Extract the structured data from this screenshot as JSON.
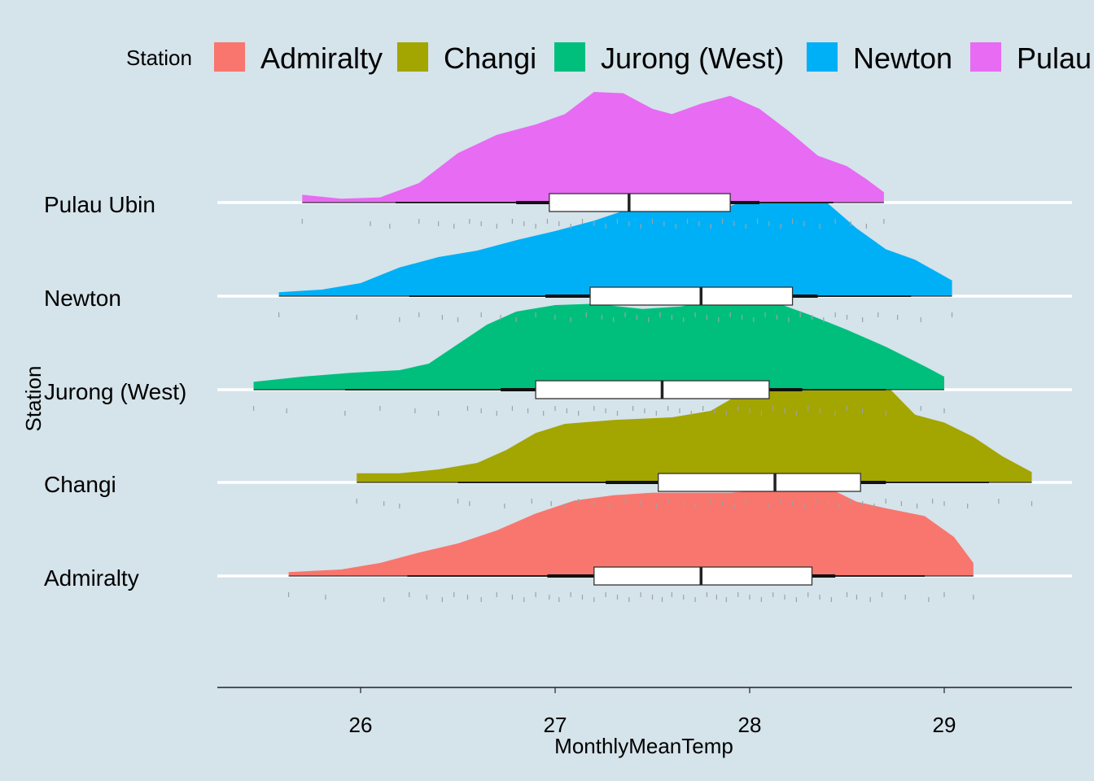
{
  "chart_data": {
    "type": "raincloud",
    "xlabel": "MonthlyMeanTemp",
    "ylabel": "Station",
    "xlim": [
      25.25,
      29.65
    ],
    "xticks": [
      26,
      27,
      28,
      29
    ],
    "legend": {
      "title": "Station",
      "position": "top",
      "entries": [
        "Admiralty",
        "Changi",
        "Jurong (West)",
        "Newton",
        "Pulau"
      ]
    },
    "grid": "horizontal white lines at categories",
    "series": [
      {
        "name": "Admiralty",
        "color": "#F8766D",
        "min": 25.63,
        "q1": 27.2,
        "median": 27.75,
        "q3": 28.32,
        "max": 29.15,
        "whisker_low": 26.24,
        "whisker_high": 28.9,
        "inner_low": 26.96,
        "inner_high": 28.44,
        "density": [
          [
            25.63,
            0.03
          ],
          [
            25.9,
            0.05
          ],
          [
            26.1,
            0.1
          ],
          [
            26.3,
            0.18
          ],
          [
            26.5,
            0.25
          ],
          [
            26.7,
            0.35
          ],
          [
            26.9,
            0.48
          ],
          [
            27.1,
            0.58
          ],
          [
            27.3,
            0.62
          ],
          [
            27.5,
            0.64
          ],
          [
            27.7,
            0.64
          ],
          [
            27.9,
            0.64
          ],
          [
            28.1,
            0.66
          ],
          [
            28.25,
            0.7
          ],
          [
            28.4,
            0.68
          ],
          [
            28.55,
            0.57
          ],
          [
            28.7,
            0.52
          ],
          [
            28.9,
            0.46
          ],
          [
            29.05,
            0.3
          ],
          [
            29.15,
            0.1
          ]
        ],
        "points": [
          25.63,
          25.82,
          26.12,
          26.25,
          26.34,
          26.42,
          26.48,
          26.55,
          26.62,
          26.7,
          26.78,
          26.84,
          26.9,
          26.97,
          27.02,
          27.08,
          27.14,
          27.2,
          27.26,
          27.32,
          27.38,
          27.44,
          27.5,
          27.55,
          27.6,
          27.66,
          27.72,
          27.78,
          27.83,
          27.88,
          27.94,
          28.0,
          28.06,
          28.12,
          28.18,
          28.24,
          28.3,
          28.36,
          28.42,
          28.5,
          28.55,
          28.62,
          28.68,
          28.8,
          28.92,
          29.0,
          29.15
        ]
      },
      {
        "name": "Changi",
        "color": "#A3A500",
        "min": 25.98,
        "q1": 27.53,
        "median": 28.13,
        "q3": 28.57,
        "max": 29.45,
        "whisker_low": 26.5,
        "whisker_high": 29.23,
        "inner_low": 27.26,
        "inner_high": 28.7,
        "density": [
          [
            25.98,
            0.07
          ],
          [
            26.2,
            0.07
          ],
          [
            26.4,
            0.1
          ],
          [
            26.6,
            0.15
          ],
          [
            26.75,
            0.25
          ],
          [
            26.9,
            0.38
          ],
          [
            27.05,
            0.45
          ],
          [
            27.3,
            0.48
          ],
          [
            27.6,
            0.5
          ],
          [
            27.8,
            0.55
          ],
          [
            27.95,
            0.68
          ],
          [
            28.1,
            0.75
          ],
          [
            28.25,
            0.76
          ],
          [
            28.4,
            0.8
          ],
          [
            28.55,
            0.84
          ],
          [
            28.7,
            0.75
          ],
          [
            28.85,
            0.52
          ],
          [
            29.0,
            0.46
          ],
          [
            29.15,
            0.35
          ],
          [
            29.3,
            0.2
          ],
          [
            29.45,
            0.08
          ]
        ],
        "points": [
          25.98,
          26.12,
          26.2,
          26.5,
          26.56,
          26.74,
          26.88,
          26.98,
          27.05,
          27.12,
          27.2,
          27.28,
          27.36,
          27.44,
          27.52,
          27.58,
          27.66,
          27.72,
          27.8,
          27.86,
          27.92,
          27.98,
          28.04,
          28.1,
          28.16,
          28.22,
          28.28,
          28.34,
          28.4,
          28.46,
          28.52,
          28.58,
          28.64,
          28.7,
          28.78,
          28.86,
          28.94,
          29.0,
          29.12,
          29.28,
          29.45
        ]
      },
      {
        "name": "Jurong (West)",
        "color": "#00BF7D",
        "min": 25.45,
        "q1": 26.9,
        "median": 27.55,
        "q3": 28.1,
        "max": 29.0,
        "whisker_low": 25.92,
        "whisker_high": 28.7,
        "inner_low": 26.72,
        "inner_high": 28.27,
        "density": [
          [
            25.45,
            0.06
          ],
          [
            25.7,
            0.1
          ],
          [
            25.95,
            0.13
          ],
          [
            26.2,
            0.15
          ],
          [
            26.35,
            0.2
          ],
          [
            26.5,
            0.35
          ],
          [
            26.65,
            0.5
          ],
          [
            26.8,
            0.6
          ],
          [
            27.0,
            0.65
          ],
          [
            27.2,
            0.66
          ],
          [
            27.45,
            0.62
          ],
          [
            27.65,
            0.64
          ],
          [
            27.85,
            0.7
          ],
          [
            28.0,
            0.7
          ],
          [
            28.15,
            0.66
          ],
          [
            28.3,
            0.58
          ],
          [
            28.5,
            0.46
          ],
          [
            28.7,
            0.33
          ],
          [
            28.9,
            0.18
          ],
          [
            29.0,
            0.1
          ]
        ],
        "points": [
          25.45,
          25.62,
          25.92,
          26.1,
          26.28,
          26.4,
          26.55,
          26.62,
          26.7,
          26.78,
          26.86,
          26.94,
          27.0,
          27.06,
          27.12,
          27.2,
          27.26,
          27.32,
          27.4,
          27.46,
          27.52,
          27.58,
          27.64,
          27.7,
          27.76,
          27.82,
          27.88,
          27.94,
          28.0,
          28.06,
          28.12,
          28.18,
          28.24,
          28.3,
          28.36,
          28.44,
          28.5,
          28.58,
          28.7,
          28.88,
          29.0
        ]
      },
      {
        "name": "Newton",
        "color": "#00B0F6",
        "min": 25.58,
        "q1": 27.18,
        "median": 27.75,
        "q3": 28.22,
        "max": 29.04,
        "whisker_low": 26.25,
        "whisker_high": 28.83,
        "inner_low": 26.95,
        "inner_high": 28.35,
        "density": [
          [
            25.58,
            0.03
          ],
          [
            25.8,
            0.05
          ],
          [
            26.0,
            0.1
          ],
          [
            26.2,
            0.22
          ],
          [
            26.4,
            0.3
          ],
          [
            26.6,
            0.35
          ],
          [
            26.8,
            0.43
          ],
          [
            27.0,
            0.5
          ],
          [
            27.2,
            0.58
          ],
          [
            27.4,
            0.68
          ],
          [
            27.55,
            0.72
          ],
          [
            27.7,
            0.68
          ],
          [
            27.85,
            0.67
          ],
          [
            28.0,
            0.74
          ],
          [
            28.2,
            0.84
          ],
          [
            28.35,
            0.78
          ],
          [
            28.55,
            0.52
          ],
          [
            28.7,
            0.36
          ],
          [
            28.85,
            0.28
          ],
          [
            29.04,
            0.12
          ]
        ],
        "points": [
          25.58,
          25.98,
          26.2,
          26.3,
          26.42,
          26.5,
          26.62,
          26.72,
          26.8,
          26.9,
          27.0,
          27.08,
          27.16,
          27.24,
          27.3,
          27.36,
          27.42,
          27.48,
          27.54,
          27.6,
          27.66,
          27.72,
          27.78,
          27.84,
          27.9,
          27.96,
          28.02,
          28.08,
          28.14,
          28.2,
          28.26,
          28.32,
          28.38,
          28.44,
          28.5,
          28.58,
          28.66,
          28.76,
          28.88,
          29.04
        ]
      },
      {
        "name": "Pulau Ubin",
        "color": "#E76BF3",
        "min": 25.7,
        "q1": 26.97,
        "median": 27.38,
        "q3": 27.9,
        "max": 28.69,
        "whisker_low": 26.18,
        "whisker_high": 28.43,
        "inner_low": 26.8,
        "inner_high": 28.05,
        "density": [
          [
            25.7,
            0.06
          ],
          [
            25.9,
            0.03
          ],
          [
            26.1,
            0.04
          ],
          [
            26.3,
            0.15
          ],
          [
            26.5,
            0.38
          ],
          [
            26.7,
            0.52
          ],
          [
            26.9,
            0.6
          ],
          [
            27.05,
            0.68
          ],
          [
            27.2,
            0.85
          ],
          [
            27.35,
            0.84
          ],
          [
            27.5,
            0.72
          ],
          [
            27.6,
            0.68
          ],
          [
            27.75,
            0.76
          ],
          [
            27.9,
            0.82
          ],
          [
            28.05,
            0.72
          ],
          [
            28.2,
            0.55
          ],
          [
            28.35,
            0.36
          ],
          [
            28.5,
            0.28
          ],
          [
            28.6,
            0.18
          ],
          [
            28.69,
            0.08
          ]
        ],
        "points": [
          25.7,
          26.05,
          26.15,
          26.3,
          26.4,
          26.48,
          26.56,
          26.62,
          26.7,
          26.78,
          26.84,
          26.9,
          26.96,
          27.02,
          27.08,
          27.14,
          27.2,
          27.26,
          27.32,
          27.38,
          27.44,
          27.5,
          27.56,
          27.62,
          27.68,
          27.74,
          27.8,
          27.86,
          27.92,
          27.98,
          28.04,
          28.1,
          28.16,
          28.22,
          28.28,
          28.36,
          28.44,
          28.52,
          28.6,
          28.69
        ]
      }
    ]
  }
}
